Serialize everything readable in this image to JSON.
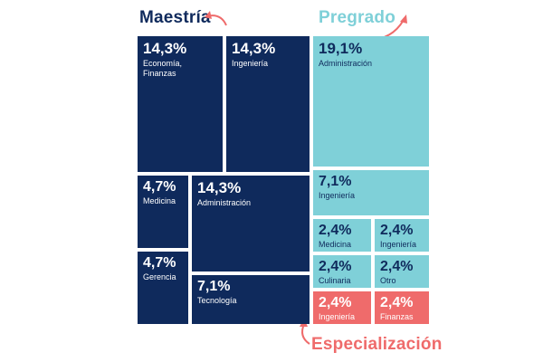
{
  "chart_data": {
    "type": "treemap",
    "groups": [
      {
        "name": "Maestría",
        "color": "#0f2a5c",
        "text_color": "#ffffff"
      },
      {
        "name": "Pregrado",
        "color": "#7fd0d8",
        "text_color": "#0f2a5c"
      },
      {
        "name": "Especialización",
        "color": "#ef6b6b",
        "text_color": "#ffffff"
      }
    ],
    "items": [
      {
        "group": "Maestría",
        "value": "14,3%",
        "label": "Economía,\nFinanzas"
      },
      {
        "group": "Maestría",
        "value": "14,3%",
        "label": "Ingeniería"
      },
      {
        "group": "Maestría",
        "value": "4,7%",
        "label": "Medicina"
      },
      {
        "group": "Maestría",
        "value": "14,3%",
        "label": "Administración"
      },
      {
        "group": "Maestría",
        "value": "4,7%",
        "label": "Gerencia"
      },
      {
        "group": "Maestría",
        "value": "7,1%",
        "label": "Tecnología"
      },
      {
        "group": "Pregrado",
        "value": "19,1%",
        "label": "Administración"
      },
      {
        "group": "Pregrado",
        "value": "7,1%",
        "label": "Ingeniería"
      },
      {
        "group": "Pregrado",
        "value": "2,4%",
        "label": "Medicina"
      },
      {
        "group": "Pregrado",
        "value": "2,4%",
        "label": "Ingeniería"
      },
      {
        "group": "Pregrado",
        "value": "2,4%",
        "label": "Culinaria"
      },
      {
        "group": "Pregrado",
        "value": "2,4%",
        "label": "Otro"
      },
      {
        "group": "Especialización",
        "value": "2,4%",
        "label": "Ingeniería"
      },
      {
        "group": "Especialización",
        "value": "2,4%",
        "label": "Finanzas"
      }
    ]
  },
  "titles": {
    "maestria": "Maestría",
    "pregrado": "Pregrado",
    "especializacion": "Especialización"
  }
}
